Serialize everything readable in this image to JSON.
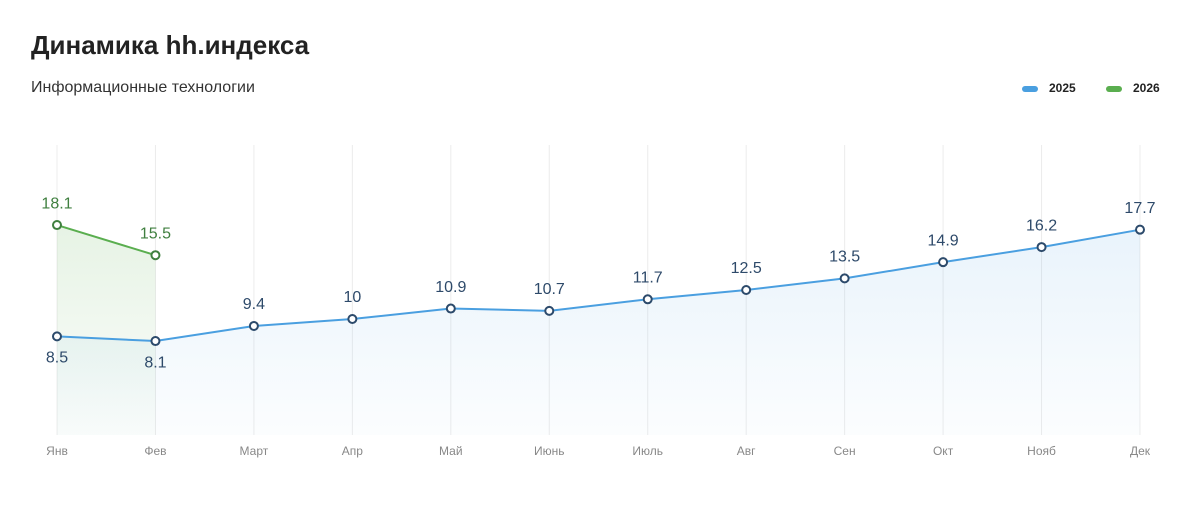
{
  "chart_data": {
    "type": "line",
    "title": "Динамика hh.индекса",
    "subtitle": "Информационные технологии",
    "categories": [
      "Янв",
      "Фев",
      "Март",
      "Апр",
      "Май",
      "Июнь",
      "Июль",
      "Авг",
      "Сен",
      "Окт",
      "Нояб",
      "Дек"
    ],
    "series": [
      {
        "name": "2025",
        "color": "#4a9fe0",
        "values": [
          8.5,
          8.1,
          9.4,
          10,
          10.9,
          10.7,
          11.7,
          12.5,
          13.5,
          14.9,
          16.2,
          17.7
        ]
      },
      {
        "name": "2026",
        "color": "#5aae4f",
        "values": [
          18.1,
          15.5,
          null,
          null,
          null,
          null,
          null,
          null,
          null,
          null,
          null,
          null
        ]
      }
    ],
    "ylim": [
      0,
      25
    ],
    "grid": true,
    "legend": "top-right"
  }
}
